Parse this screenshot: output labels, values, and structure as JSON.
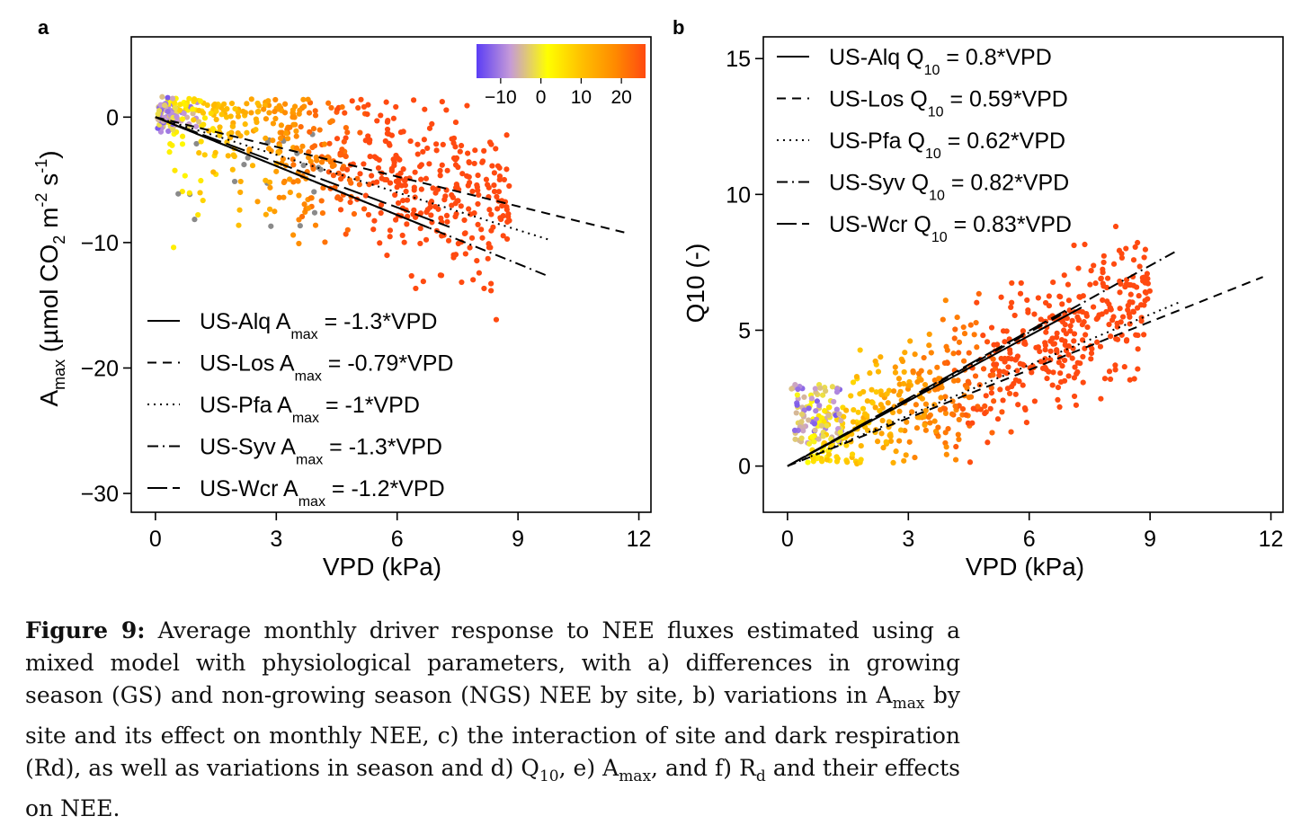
{
  "panels": [
    {
      "id": "a",
      "label": "a",
      "chart_data": {
        "type": "scatter",
        "xlabel": "VPD (kPa)",
        "ylabel": {
          "base": "A",
          "sub": "max",
          "rest": " (µmol CO",
          "sub2": "2",
          "rest2": " m",
          "sup1": "-2",
          "rest3": " s",
          "sup2": "-1",
          "close": ")"
        },
        "xlim": [
          -0.6,
          12.3
        ],
        "ylim": [
          -31.5,
          6.4
        ],
        "xticks": [
          0,
          3,
          6,
          9,
          12
        ],
        "yticks": [
          0,
          -10,
          -20,
          -30
        ],
        "ytick_labels": [
          "0",
          "−10",
          "−20",
          "−30"
        ],
        "colorbar": {
          "ticks": [
            -10,
            0,
            10,
            20
          ],
          "tick_labels": [
            "−10",
            "0",
            "10",
            "20"
          ],
          "range": [
            -16,
            26
          ]
        },
        "fits": [
          {
            "site": "US-Alq",
            "slope": -1.3,
            "xmax": 6.8,
            "dash": "solid",
            "label": "US-Alq A",
            "sub": "max",
            "eq": " = -1.3*VPD"
          },
          {
            "site": "US-Los",
            "slope": -0.79,
            "xmax": 11.7,
            "dash": "dashed",
            "label": "US-Los A",
            "sub": "max",
            "eq": " = -0.79*VPD"
          },
          {
            "site": "US-Pfa",
            "slope": -1.0,
            "xmax": 9.8,
            "dash": "dotted",
            "label": "US-Pfa A",
            "sub": "max",
            "eq": " = -1*VPD"
          },
          {
            "site": "US-Syv",
            "slope": -1.3,
            "xmax": 9.7,
            "dash": "dotdash",
            "label": "US-Syv A",
            "sub": "max",
            "eq": " = -1.3*VPD"
          },
          {
            "site": "US-Wcr",
            "slope": -1.2,
            "xmax": 7.3,
            "dash": "longdash",
            "label": "US-Wcr A",
            "sub": "max",
            "eq": " = -1.2*VPD"
          }
        ],
        "legend_position": "bottom-left",
        "colorbar_position": "top-right",
        "n_points_approx": 700
      }
    },
    {
      "id": "b",
      "label": "b",
      "chart_data": {
        "type": "scatter",
        "xlabel": "VPD (kPa)",
        "ylabel": {
          "base": "Q10 (-)"
        },
        "xlim": [
          -0.6,
          12.3
        ],
        "ylim": [
          -1.7,
          15.8
        ],
        "xticks": [
          0,
          3,
          6,
          9,
          12
        ],
        "yticks": [
          0,
          5,
          10,
          15
        ],
        "ytick_labels": [
          "0",
          "5",
          "10",
          "15"
        ],
        "fits": [
          {
            "site": "US-Alq",
            "slope": 0.8,
            "xmax": 7.3,
            "dash": "solid",
            "label": "US-Alq  Q",
            "sub": "10",
            "eq": " = 0.8*VPD"
          },
          {
            "site": "US-Los",
            "slope": 0.59,
            "xmax": 11.8,
            "dash": "dashed",
            "label": "US-Los  Q",
            "sub": "10",
            "eq": " = 0.59*VPD"
          },
          {
            "site": "US-Pfa",
            "slope": 0.62,
            "xmax": 9.8,
            "dash": "dotted",
            "label": "US-Pfa  Q",
            "sub": "10",
            "eq": " = 0.62*VPD"
          },
          {
            "site": "US-Syv",
            "slope": 0.82,
            "xmax": 9.7,
            "dash": "dotdash",
            "label": "US-Syv  Q",
            "sub": "10",
            "eq": " = 0.82*VPD"
          },
          {
            "site": "US-Wcr",
            "slope": 0.83,
            "xmax": 6.9,
            "dash": "longdash",
            "label": "US-Wcr  Q",
            "sub": "10",
            "eq": " = 0.83*VPD"
          }
        ],
        "legend_position": "top-left",
        "n_points_approx": 700
      }
    }
  ],
  "colors": {
    "colormap": [
      "#5b3df5",
      "#c59ad8",
      "#ffff00",
      "#ffc000",
      "#ff8a00",
      "#ff4a10"
    ],
    "grey_points": "#8a8a8a",
    "axis": "#000000"
  },
  "caption": {
    "label": "Figure 9:",
    "parts": [
      {
        "t": " Average monthly driver response to NEE fluxes estimated using a mixed model with physiological parameters, with a) differences in growing season (GS) and non-growing season (NGS) NEE by site, b) variations in A"
      },
      {
        "sub": "max"
      },
      {
        "t": " by site and its effect on monthly NEE, c) the interaction of site and dark respiration (Rd), as well as variations in season and d) Q"
      },
      {
        "sub": "10"
      },
      {
        "t": ", e) A"
      },
      {
        "sub": "max"
      },
      {
        "t": ", and f) R"
      },
      {
        "sub": "d"
      },
      {
        "t": " and their effects on NEE."
      }
    ]
  }
}
